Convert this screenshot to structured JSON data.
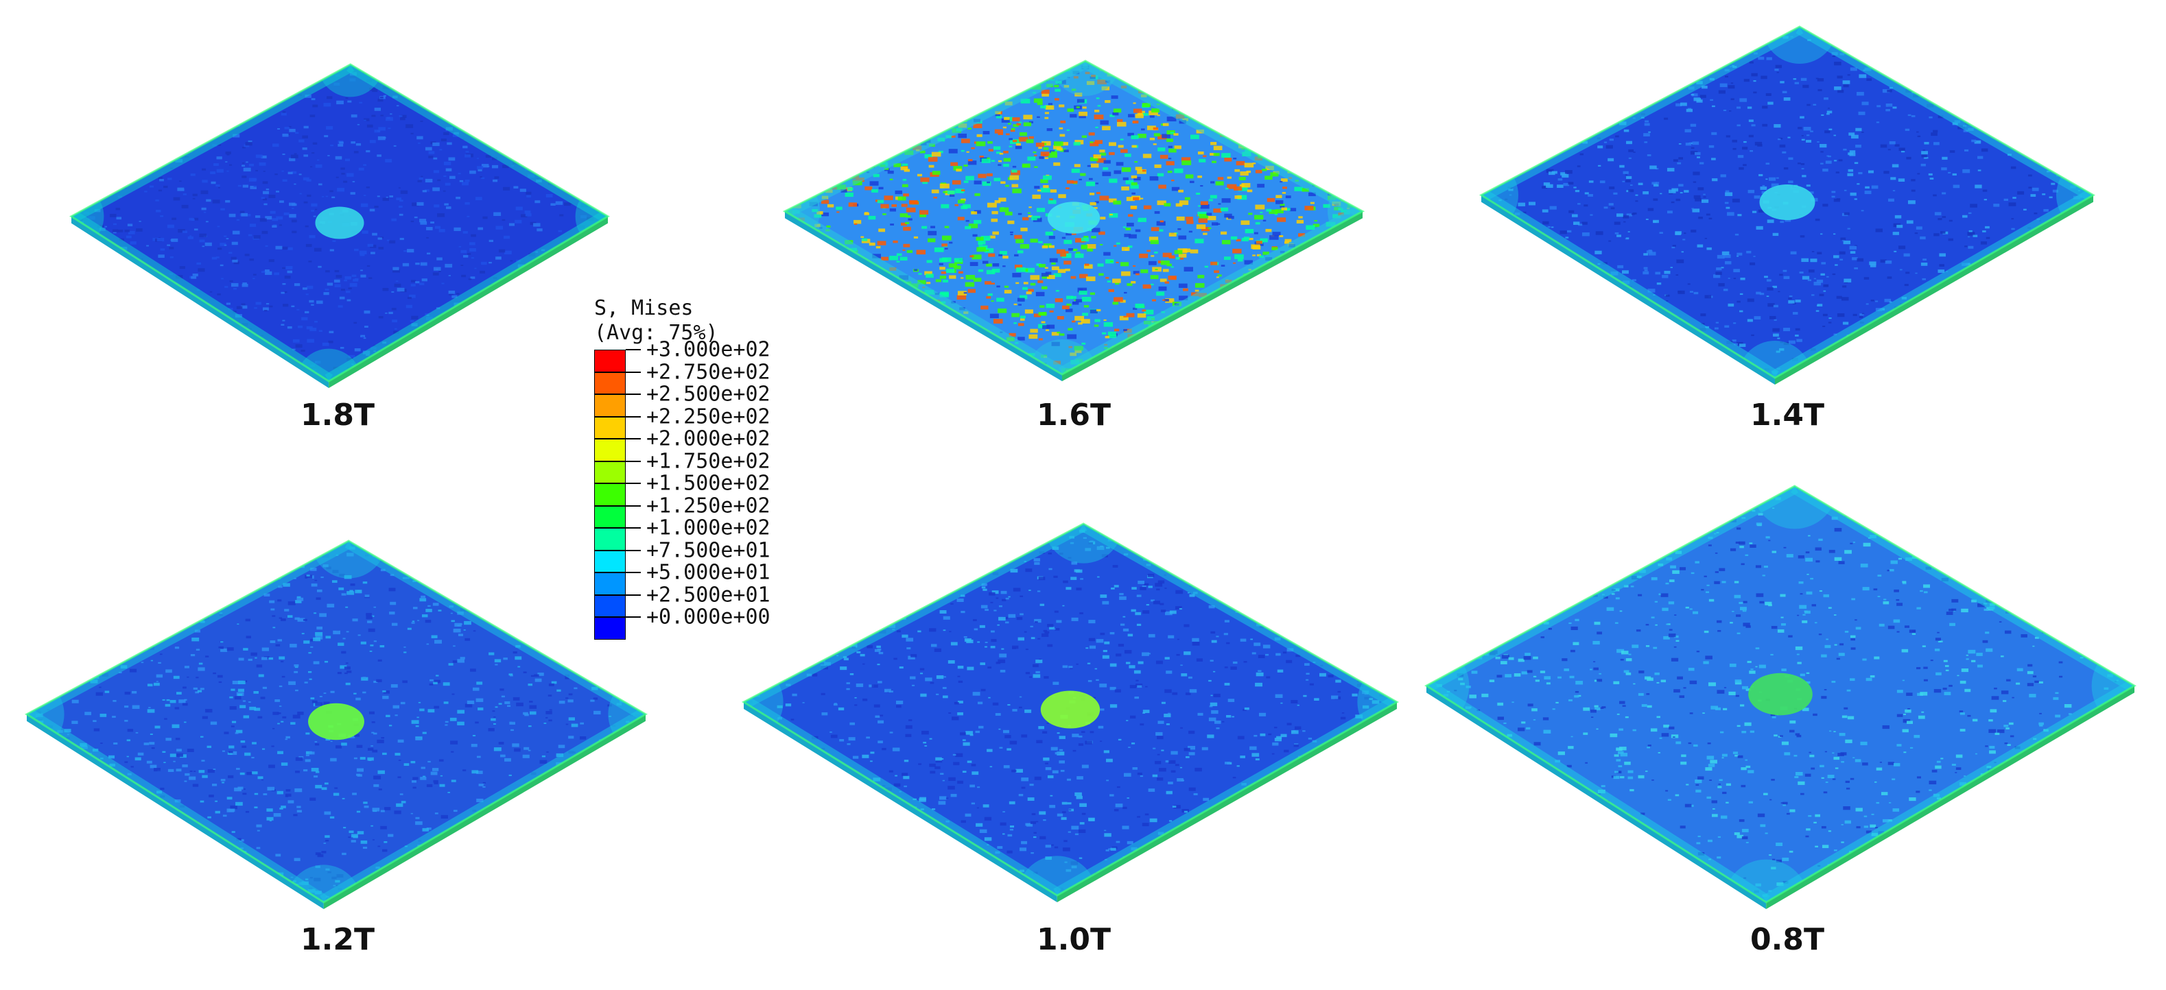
{
  "legend": {
    "title_line1": "S, Mises",
    "title_line2": "(Avg: 75%)",
    "labels": [
      "+3.000e+02",
      "+2.750e+02",
      "+2.500e+02",
      "+2.250e+02",
      "+2.000e+02",
      "+1.750e+02",
      "+1.500e+02",
      "+1.250e+02",
      "+1.000e+02",
      "+7.500e+01",
      "+5.000e+01",
      "+2.500e+01",
      "+0.000e+00"
    ],
    "colors": [
      "#ff0000",
      "#ff5a00",
      "#ff9f00",
      "#ffd000",
      "#e8ff00",
      "#9cff00",
      "#3cff00",
      "#00ff3c",
      "#00ffa0",
      "#00e6ff",
      "#0096ff",
      "#0050ff",
      "#0000ff"
    ]
  },
  "panels": [
    {
      "label": "1.8T",
      "base_color": "#1e3fd8",
      "edge_color": "#12c9d6",
      "center_color": "#35d6e8",
      "speckle_colors": [
        "#2050e6",
        "#1a36c2",
        "#2a78f0"
      ]
    },
    {
      "label": "1.6T",
      "base_color": "#2f8ef2",
      "edge_color": "#27c8e0",
      "center_color": "#40e2f0",
      "speckle_colors": [
        "#ff5a00",
        "#ffd000",
        "#3cff00",
        "#1a40d8",
        "#00ffa0"
      ]
    },
    {
      "label": "1.4T",
      "base_color": "#1e48dc",
      "edge_color": "#1dc6e6",
      "center_color": "#38d8ec",
      "speckle_colors": [
        "#2a7af0",
        "#1636c0",
        "#30a8f4"
      ]
    },
    {
      "label": "1.2T",
      "base_color": "#2356dc",
      "edge_color": "#1cc0e4",
      "center_color": "#6cff3c",
      "speckle_colors": [
        "#2f90f2",
        "#1a3ccc",
        "#28b0f0"
      ]
    },
    {
      "label": "1.0T",
      "base_color": "#2050de",
      "edge_color": "#1cc4e4",
      "center_color": "#8cff30",
      "speckle_colors": [
        "#2f90f2",
        "#1a3acc",
        "#30b4f2"
      ]
    },
    {
      "label": "0.8T",
      "base_color": "#2a78e8",
      "edge_color": "#1ec8e6",
      "center_color": "#40e060",
      "speckle_colors": [
        "#30b8f2",
        "#1a40cc",
        "#3cd8ec"
      ]
    }
  ]
}
